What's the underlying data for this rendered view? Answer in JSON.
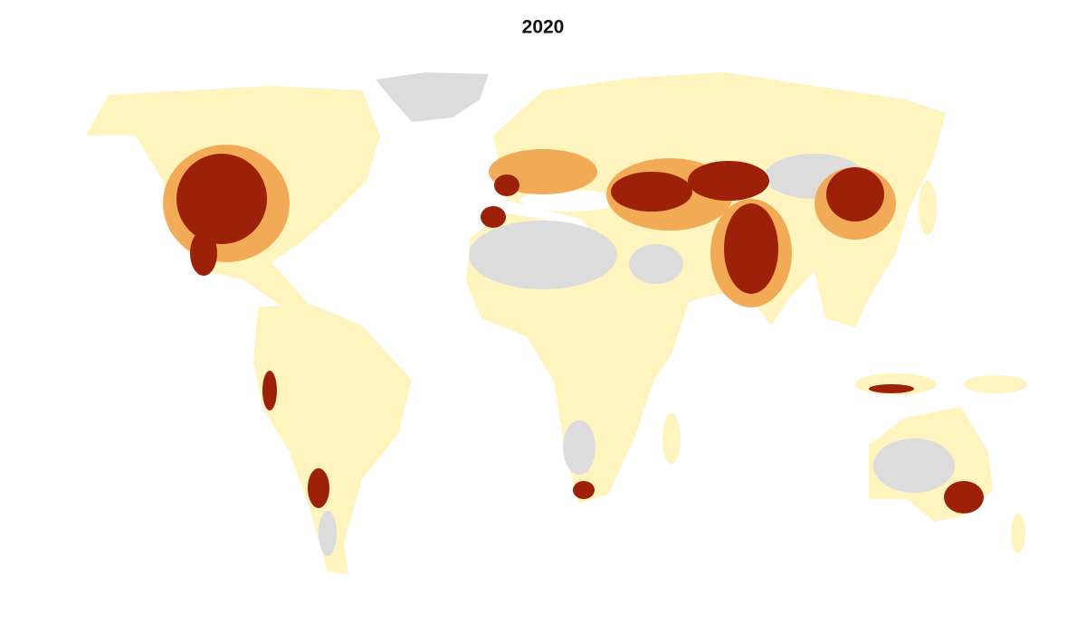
{
  "title": "2020"
}
